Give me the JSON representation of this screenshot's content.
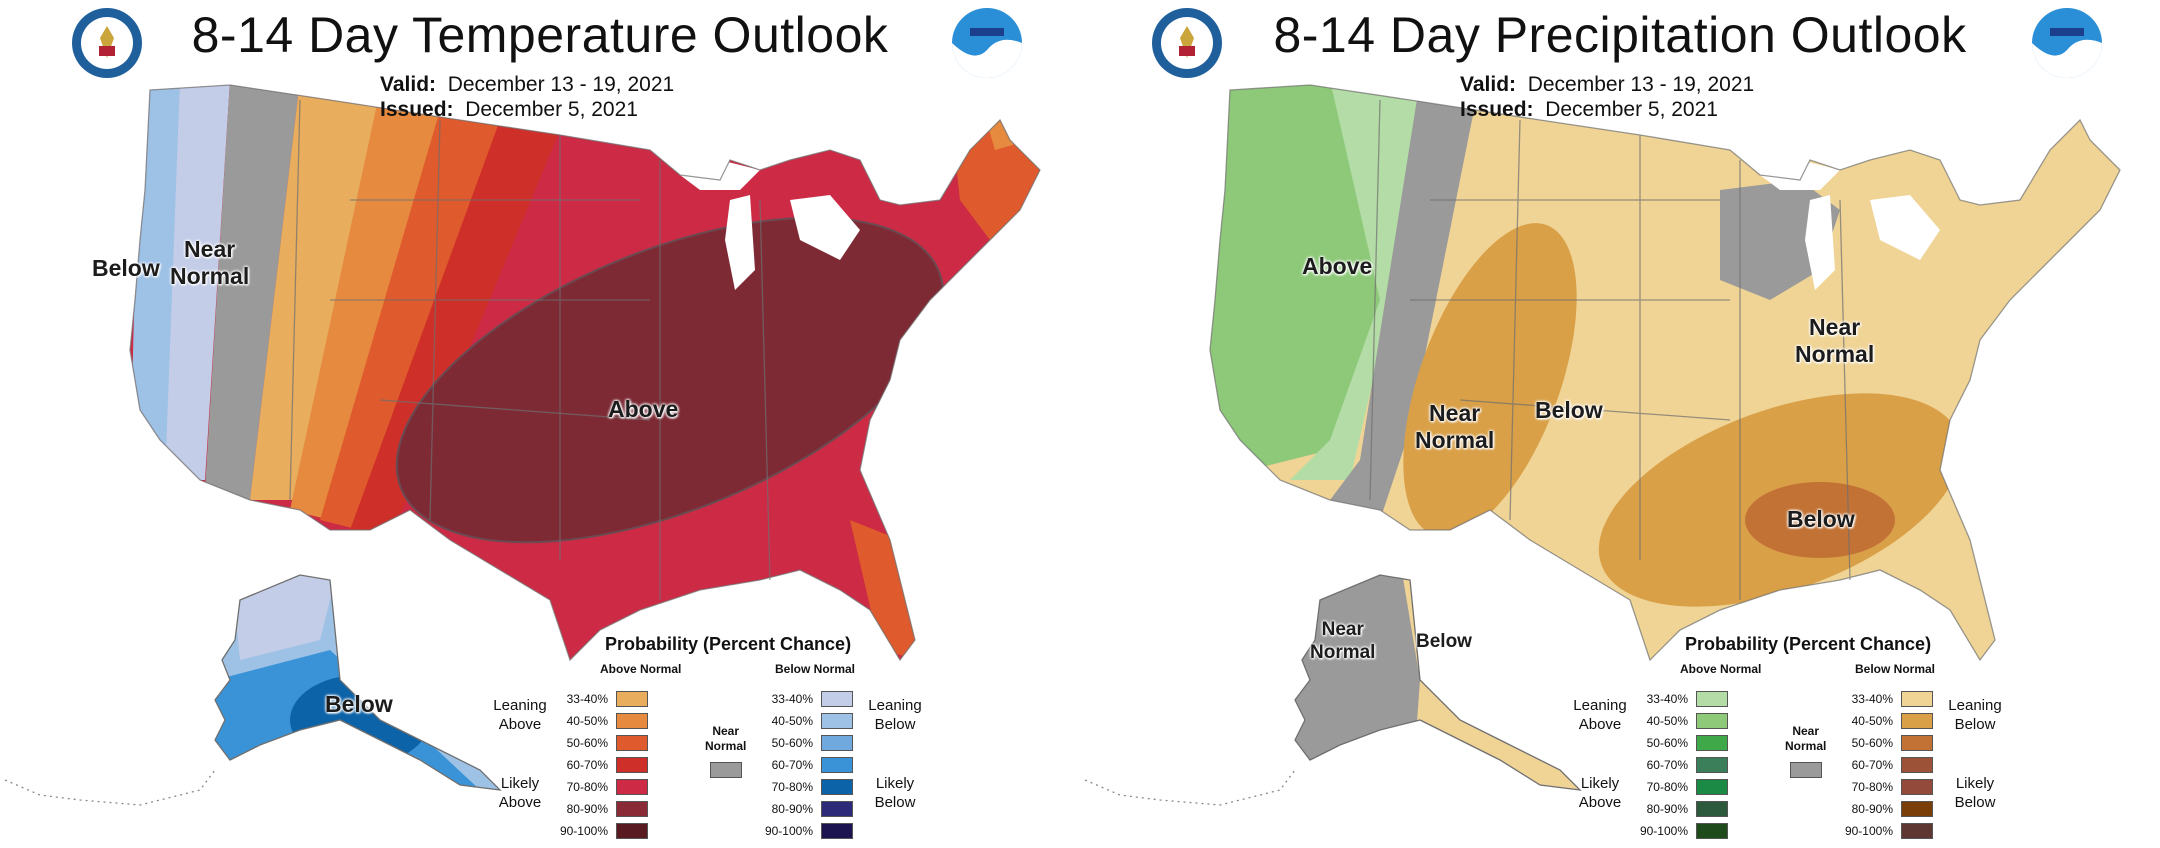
{
  "panels": [
    {
      "title": "8-14 Day Temperature Outlook",
      "valid_label": "Valid:",
      "valid_value": "December 13 - 19, 2021",
      "issued_label": "Issued:",
      "issued_value": "December 5, 2021",
      "map_labels": {
        "below": "Below",
        "near_normal_1": "Near",
        "near_normal_2": "Normal",
        "above": "Above",
        "alaska_below": "Below"
      },
      "legend": {
        "title": "Probability (Percent Chance)",
        "above_heading": "Above Normal",
        "below_heading": "Below Normal",
        "near_normal_1": "Near",
        "near_normal_2": "Normal",
        "leaning_above_1": "Leaning",
        "leaning_above_2": "Above",
        "likely_above_1": "Likely",
        "likely_above_2": "Above",
        "leaning_below_1": "Leaning",
        "leaning_below_2": "Below",
        "likely_below_1": "Likely",
        "likely_below_2": "Below",
        "above_rows": [
          {
            "pct": "33-40%",
            "color": "#e8ae5e"
          },
          {
            "pct": "40-50%",
            "color": "#e68a40"
          },
          {
            "pct": "50-60%",
            "color": "#df5a2c"
          },
          {
            "pct": "60-70%",
            "color": "#cf2f29"
          },
          {
            "pct": "70-80%",
            "color": "#cc2a45"
          },
          {
            "pct": "80-90%",
            "color": "#8a2a37"
          },
          {
            "pct": "90-100%",
            "color": "#5a1a22"
          }
        ],
        "below_rows": [
          {
            "pct": "33-40%",
            "color": "#c4cde8"
          },
          {
            "pct": "40-50%",
            "color": "#9ec1e6"
          },
          {
            "pct": "50-60%",
            "color": "#6fa9dd"
          },
          {
            "pct": "60-70%",
            "color": "#3a93d6"
          },
          {
            "pct": "70-80%",
            "color": "#0d63a8"
          },
          {
            "pct": "80-90%",
            "color": "#2d2a7a"
          },
          {
            "pct": "90-100%",
            "color": "#1b1450"
          }
        ],
        "near_color": "#9a9a9a"
      }
    },
    {
      "title": "8-14 Day Precipitation Outlook",
      "valid_label": "Valid:",
      "valid_value": "December 13 - 19, 2021",
      "issued_label": "Issued:",
      "issued_value": "December 5, 2021",
      "map_labels": {
        "above": "Above",
        "near_normal_west_1": "Near",
        "near_normal_west_2": "Normal",
        "below_plains": "Below",
        "near_normal_lakes_1": "Near",
        "near_normal_lakes_2": "Normal",
        "below_southeast": "Below",
        "ak_near_1": "Near",
        "ak_near_2": "Normal",
        "ak_below": "Below"
      },
      "legend": {
        "title": "Probability (Percent Chance)",
        "above_heading": "Above Normal",
        "below_heading": "Below Normal",
        "near_normal_1": "Near",
        "near_normal_2": "Normal",
        "leaning_above_1": "Leaning",
        "leaning_above_2": "Above",
        "likely_above_1": "Likely",
        "likely_above_2": "Above",
        "leaning_below_1": "Leaning",
        "leaning_below_2": "Below",
        "likely_below_1": "Likely",
        "likely_below_2": "Below",
        "above_rows": [
          {
            "pct": "33-40%",
            "color": "#b3dca6"
          },
          {
            "pct": "40-50%",
            "color": "#8ec97a"
          },
          {
            "pct": "50-60%",
            "color": "#3fa848"
          },
          {
            "pct": "60-70%",
            "color": "#3b7f5a"
          },
          {
            "pct": "70-80%",
            "color": "#1a8a45"
          },
          {
            "pct": "80-90%",
            "color": "#2d5a3c"
          },
          {
            "pct": "90-100%",
            "color": "#1f4a1c"
          }
        ],
        "below_rows": [
          {
            "pct": "33-40%",
            "color": "#f0d496"
          },
          {
            "pct": "40-50%",
            "color": "#d9a048"
          },
          {
            "pct": "50-60%",
            "color": "#c27234"
          },
          {
            "pct": "60-70%",
            "color": "#9b5236"
          },
          {
            "pct": "70-80%",
            "color": "#934a3a"
          },
          {
            "pct": "80-90%",
            "color": "#7a3e08"
          },
          {
            "pct": "90-100%",
            "color": "#5e3632"
          }
        ],
        "near_color": "#9a9a9a"
      }
    }
  ]
}
